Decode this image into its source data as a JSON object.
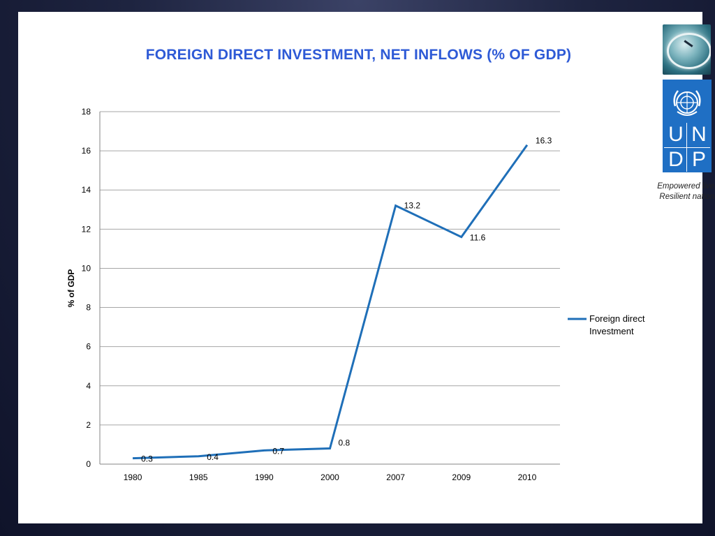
{
  "slide": {
    "tagline_line1": "Empowered lives.",
    "tagline_line2": "Resilient nations.",
    "logo_letters": [
      "U",
      "N",
      "D",
      "P"
    ]
  },
  "chart_data": {
    "type": "line",
    "title": "FOREIGN DIRECT INVESTMENT, NET INFLOWS (% OF GDP)",
    "xlabel": "",
    "ylabel": "% of GDP",
    "categories": [
      "1980",
      "1985",
      "1990",
      "2000",
      "2007",
      "2009",
      "2010"
    ],
    "series": [
      {
        "name": "Foreign direct Investment",
        "values": [
          0.3,
          0.4,
          0.7,
          0.8,
          13.2,
          11.6,
          16.3
        ],
        "data_labels": [
          "0.3",
          "0.4",
          "0.7",
          "0.8",
          "13.2",
          "11.6",
          "16.3"
        ],
        "color": "#1f6fb8"
      }
    ],
    "ylim": [
      0,
      18
    ],
    "yticks": [
      0,
      2,
      4,
      6,
      8,
      10,
      12,
      14,
      16,
      18
    ],
    "grid": true,
    "legend_position": "right",
    "title_color": "#2e5ad6",
    "grid_color": "#a6a6a6"
  }
}
